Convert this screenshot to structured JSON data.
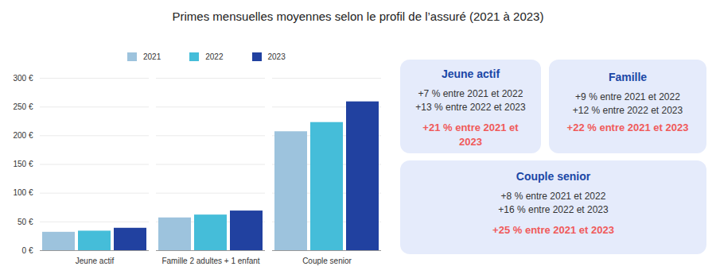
{
  "chart_data": {
    "type": "bar",
    "title": "Primes mensuelles moyennes selon le profil de l’assuré (2021 à 2023)",
    "categories": [
      "Jeune actif",
      "Famille 2 adultes + 1 enfant",
      "Couple senior"
    ],
    "series": [
      {
        "name": "2021",
        "color": "#9dc3dd",
        "values": [
          32,
          57,
          207
        ]
      },
      {
        "name": "2022",
        "color": "#45bdd9",
        "values": [
          34,
          62,
          223
        ]
      },
      {
        "name": "2023",
        "color": "#2141a0",
        "values": [
          39,
          69,
          259
        ]
      }
    ],
    "ylim": [
      0,
      300
    ],
    "yticks": [
      {
        "value": 0,
        "label": "0 €"
      },
      {
        "value": 50,
        "label": "50 €"
      },
      {
        "value": 100,
        "label": "100 €"
      },
      {
        "value": 150,
        "label": "150 €"
      },
      {
        "value": 200,
        "label": "200 €"
      },
      {
        "value": 250,
        "label": "250 €"
      },
      {
        "value": 300,
        "label": "300 €"
      }
    ],
    "grid": true,
    "legend": "top",
    "annotations": [
      {
        "title": "Jeune actif",
        "lines": [
          "+7 % entre 2021 et 2022",
          "+13 % entre 2022 et 2023"
        ],
        "highlight": "+21 % entre 2021 et 2023"
      },
      {
        "title": "Famille",
        "lines": [
          "+9 % entre 2021 et 2022",
          "+12 % entre 2022 et 2023"
        ],
        "highlight": "+22 % entre 2021 et 2023"
      },
      {
        "title": "Couple senior",
        "lines": [
          "+8 % entre 2021 et 2022",
          "+16 % entre 2022 et 2023"
        ],
        "highlight": "+25 % entre 2021 et 2023"
      }
    ]
  }
}
